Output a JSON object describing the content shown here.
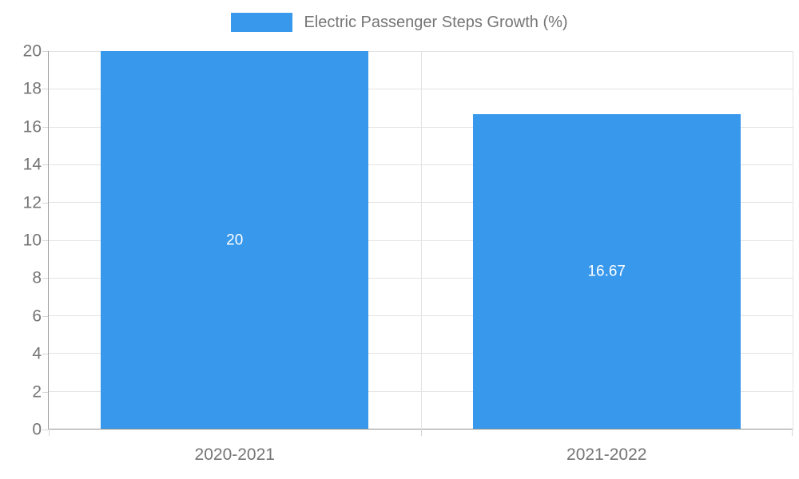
{
  "colors": {
    "bar": "#3898EC",
    "grid": "#e3e3e3",
    "axis": "#9e9e9e",
    "tick_text": "#757575",
    "bar_label_text": "#ffffff",
    "background": "#ffffff"
  },
  "legend": {
    "label": "Electric Passenger Steps Growth (%)"
  },
  "chart_data": {
    "type": "bar",
    "title": "Electric Passenger Steps Growth (%)",
    "categories": [
      "2020-2021",
      "2021-2022"
    ],
    "values": [
      20,
      16.67
    ],
    "value_labels": [
      "20",
      "16.67"
    ],
    "xlabel": "",
    "ylabel": "",
    "ylim": [
      0,
      20
    ],
    "ytick_step": 2,
    "yticks": [
      0,
      2,
      4,
      6,
      8,
      10,
      12,
      14,
      16,
      18,
      20
    ],
    "grid": true,
    "legend_position": "top-center",
    "bar_width_fraction": 0.72,
    "value_label_position": "center"
  }
}
